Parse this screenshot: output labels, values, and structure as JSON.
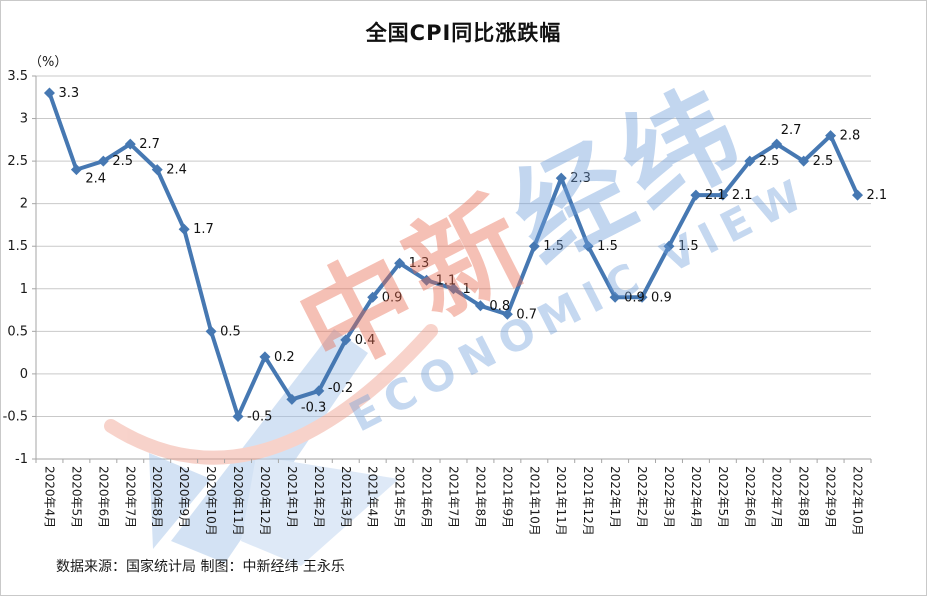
{
  "chart_data": {
    "type": "line",
    "title": "全国CPI同比涨跌幅",
    "unit_label": "（%）",
    "categories": [
      "2020年4月",
      "2020年5月",
      "2020年6月",
      "2020年7月",
      "2020年8月",
      "2020年9月",
      "2020年10月",
      "2020年11月",
      "2020年12月",
      "2021年1月",
      "2021年2月",
      "2021年3月",
      "2021年4月",
      "2021年5月",
      "2021年6月",
      "2021年7月",
      "2021年8月",
      "2021年9月",
      "2021年10月",
      "2021年11月",
      "2021年12月",
      "2022年1月",
      "2022年2月",
      "2022年3月",
      "2022年4月",
      "2022年5月",
      "2022年6月",
      "2022年7月",
      "2022年8月",
      "2022年9月",
      "2022年10月"
    ],
    "values": [
      3.3,
      2.4,
      2.5,
      2.7,
      2.4,
      1.7,
      0.5,
      -0.5,
      0.2,
      -0.3,
      -0.2,
      0.4,
      0.9,
      1.3,
      1.1,
      1,
      0.8,
      0.7,
      1.5,
      2.3,
      1.5,
      0.9,
      0.9,
      1.5,
      2.1,
      2.1,
      2.5,
      2.7,
      2.5,
      2.8,
      2.1
    ],
    "ylim": [
      -1,
      3.5
    ],
    "ytick_step": 0.5,
    "y_ticks": [
      "3.5",
      "3",
      "2.5",
      "2",
      "1.5",
      "1",
      "0.5",
      "0",
      "-0.5",
      "-1"
    ],
    "grid": true,
    "legend": "none",
    "line_color": "#4678b2",
    "source_note": "数据来源：国家统计局 制图：中新经纬 王永乐",
    "watermark": {
      "zh_red": "中新",
      "zh_blue": "经纬",
      "en": "ECONOMIC VIEW"
    }
  }
}
